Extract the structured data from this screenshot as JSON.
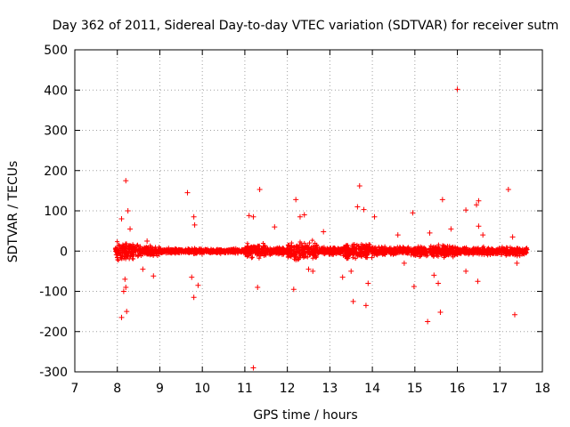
{
  "chart_data": {
    "type": "scatter",
    "title": "Day 362 of 2011, Sidereal Day-to-day VTEC variation (SDTVAR) for receiver sutm",
    "xlabel": "GPS time / hours",
    "ylabel": "SDTVAR / TECUs",
    "xlim": [
      7,
      18
    ],
    "ylim": [
      -300,
      500
    ],
    "x_ticks": [
      7,
      8,
      9,
      10,
      11,
      12,
      13,
      14,
      15,
      16,
      17,
      18
    ],
    "y_ticks": [
      -300,
      -200,
      -100,
      0,
      100,
      200,
      300,
      400,
      500
    ],
    "x_tick_labels": [
      "7",
      "8",
      "9",
      "10",
      "11",
      "12",
      "13",
      "14",
      "15",
      "16",
      "17",
      "18"
    ],
    "y_tick_labels": [
      "-300",
      "-200",
      "-100",
      "0",
      "100",
      "200",
      "300",
      "400",
      "500"
    ],
    "grid": true,
    "marker": "+",
    "series_color": "#ff0000",
    "dense_band": {
      "x_start": 7.95,
      "x_end": 17.65,
      "segments": [
        {
          "x0": 7.95,
          "x1": 8.5,
          "spread": 28
        },
        {
          "x0": 8.5,
          "x1": 9.0,
          "spread": 16
        },
        {
          "x0": 9.0,
          "x1": 10.0,
          "spread": 9
        },
        {
          "x0": 10.0,
          "x1": 11.0,
          "spread": 8
        },
        {
          "x0": 11.0,
          "x1": 11.6,
          "spread": 22
        },
        {
          "x0": 11.6,
          "x1": 12.0,
          "spread": 12
        },
        {
          "x0": 12.0,
          "x1": 12.7,
          "spread": 28
        },
        {
          "x0": 12.7,
          "x1": 13.3,
          "spread": 12
        },
        {
          "x0": 13.3,
          "x1": 14.0,
          "spread": 26
        },
        {
          "x0": 14.0,
          "x1": 15.0,
          "spread": 14
        },
        {
          "x0": 15.0,
          "x1": 16.0,
          "spread": 18
        },
        {
          "x0": 16.0,
          "x1": 17.0,
          "spread": 12
        },
        {
          "x0": 17.0,
          "x1": 17.65,
          "spread": 14
        }
      ]
    },
    "outliers": [
      {
        "x": 8.1,
        "y": 80
      },
      {
        "x": 8.15,
        "y": -100
      },
      {
        "x": 8.1,
        "y": -165
      },
      {
        "x": 8.2,
        "y": 175
      },
      {
        "x": 8.25,
        "y": 100
      },
      {
        "x": 8.22,
        "y": -150
      },
      {
        "x": 8.18,
        "y": -70
      },
      {
        "x": 8.3,
        "y": 55
      },
      {
        "x": 8.2,
        "y": -90
      },
      {
        "x": 8.6,
        "y": -45
      },
      {
        "x": 8.7,
        "y": 25
      },
      {
        "x": 8.85,
        "y": -62
      },
      {
        "x": 9.65,
        "y": 145
      },
      {
        "x": 9.8,
        "y": 85
      },
      {
        "x": 9.82,
        "y": 65
      },
      {
        "x": 9.8,
        "y": -115
      },
      {
        "x": 9.9,
        "y": -85
      },
      {
        "x": 9.75,
        "y": -65
      },
      {
        "x": 11.1,
        "y": 88
      },
      {
        "x": 11.2,
        "y": 85
      },
      {
        "x": 11.35,
        "y": 153
      },
      {
        "x": 11.2,
        "y": -290
      },
      {
        "x": 11.3,
        "y": -90
      },
      {
        "x": 11.7,
        "y": 60
      },
      {
        "x": 12.2,
        "y": 128
      },
      {
        "x": 12.15,
        "y": -95
      },
      {
        "x": 12.4,
        "y": 90
      },
      {
        "x": 12.3,
        "y": 85
      },
      {
        "x": 12.5,
        "y": -45
      },
      {
        "x": 12.6,
        "y": -50
      },
      {
        "x": 12.85,
        "y": 48
      },
      {
        "x": 13.3,
        "y": -65
      },
      {
        "x": 13.55,
        "y": -125
      },
      {
        "x": 13.65,
        "y": 110
      },
      {
        "x": 13.7,
        "y": 162
      },
      {
        "x": 13.8,
        "y": 103
      },
      {
        "x": 13.85,
        "y": -135
      },
      {
        "x": 13.9,
        "y": -80
      },
      {
        "x": 14.05,
        "y": 85
      },
      {
        "x": 13.5,
        "y": -50
      },
      {
        "x": 14.75,
        "y": -30
      },
      {
        "x": 14.95,
        "y": 95
      },
      {
        "x": 14.98,
        "y": -88
      },
      {
        "x": 15.3,
        "y": -175
      },
      {
        "x": 15.35,
        "y": 45
      },
      {
        "x": 15.55,
        "y": -80
      },
      {
        "x": 15.65,
        "y": 128
      },
      {
        "x": 15.6,
        "y": -152
      },
      {
        "x": 15.45,
        "y": -60
      },
      {
        "x": 16.0,
        "y": 402
      },
      {
        "x": 16.2,
        "y": 102
      },
      {
        "x": 16.2,
        "y": -50
      },
      {
        "x": 16.45,
        "y": 115
      },
      {
        "x": 16.5,
        "y": 125
      },
      {
        "x": 16.48,
        "y": -75
      },
      {
        "x": 16.5,
        "y": 62
      },
      {
        "x": 17.2,
        "y": 153
      },
      {
        "x": 17.35,
        "y": -158
      },
      {
        "x": 17.3,
        "y": 35
      },
      {
        "x": 17.4,
        "y": -30
      },
      {
        "x": 16.6,
        "y": 40
      },
      {
        "x": 15.85,
        "y": 55
      },
      {
        "x": 14.6,
        "y": 40
      }
    ]
  }
}
